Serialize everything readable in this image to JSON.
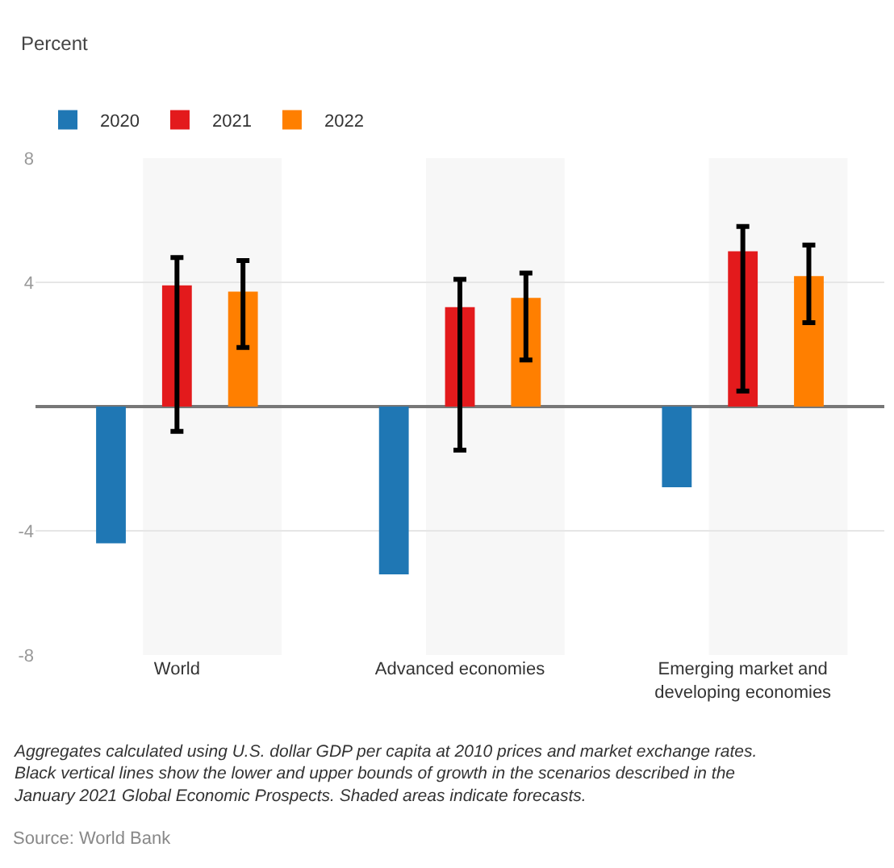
{
  "chart_data": {
    "type": "bar",
    "ylabel": "Percent",
    "categories": [
      "World",
      "Advanced economies",
      "Emerging market and developing economies"
    ],
    "series": [
      {
        "name": "2020",
        "color": "#1f77b4",
        "values": [
          -4.4,
          -5.4,
          -2.6
        ]
      },
      {
        "name": "2021",
        "color": "#e31a1c",
        "values": [
          3.9,
          3.2,
          5.0
        ],
        "errors": [
          [
            -0.8,
            4.8
          ],
          [
            -1.4,
            4.1
          ],
          [
            0.5,
            5.8
          ]
        ]
      },
      {
        "name": "2022",
        "color": "#ff7f00",
        "values": [
          3.7,
          3.5,
          4.2
        ],
        "errors": [
          [
            1.9,
            4.7
          ],
          [
            1.5,
            4.3
          ],
          [
            2.7,
            5.2
          ]
        ]
      }
    ],
    "ylim": [
      -8,
      8
    ],
    "yticks": [
      -8,
      -4,
      4,
      8
    ],
    "grid": "y",
    "legend": "top left",
    "bands": [
      {
        "axis": "x",
        "from": "World",
        "to": "World",
        "color": "#f7f7f7"
      },
      {
        "axis": "x",
        "from": "Advanced economies",
        "to": "Advanced economies",
        "color": "#f7f7f7"
      },
      {
        "axis": "x",
        "from": "Emerging market and developing economies",
        "to": "Emerging market and developing economies",
        "color": "#f7f7f7"
      }
    ],
    "annotations": [
      "Aggregates calculated using U.S. dollar GDP per capita at 2010 prices and market exchange rates. Black vertical lines show the lower and upper bounds of growth in the scenarios described in the January 2021 Global Economic Prospects. Shaded areas indicate forecasts.",
      "Source: World Bank"
    ]
  }
}
